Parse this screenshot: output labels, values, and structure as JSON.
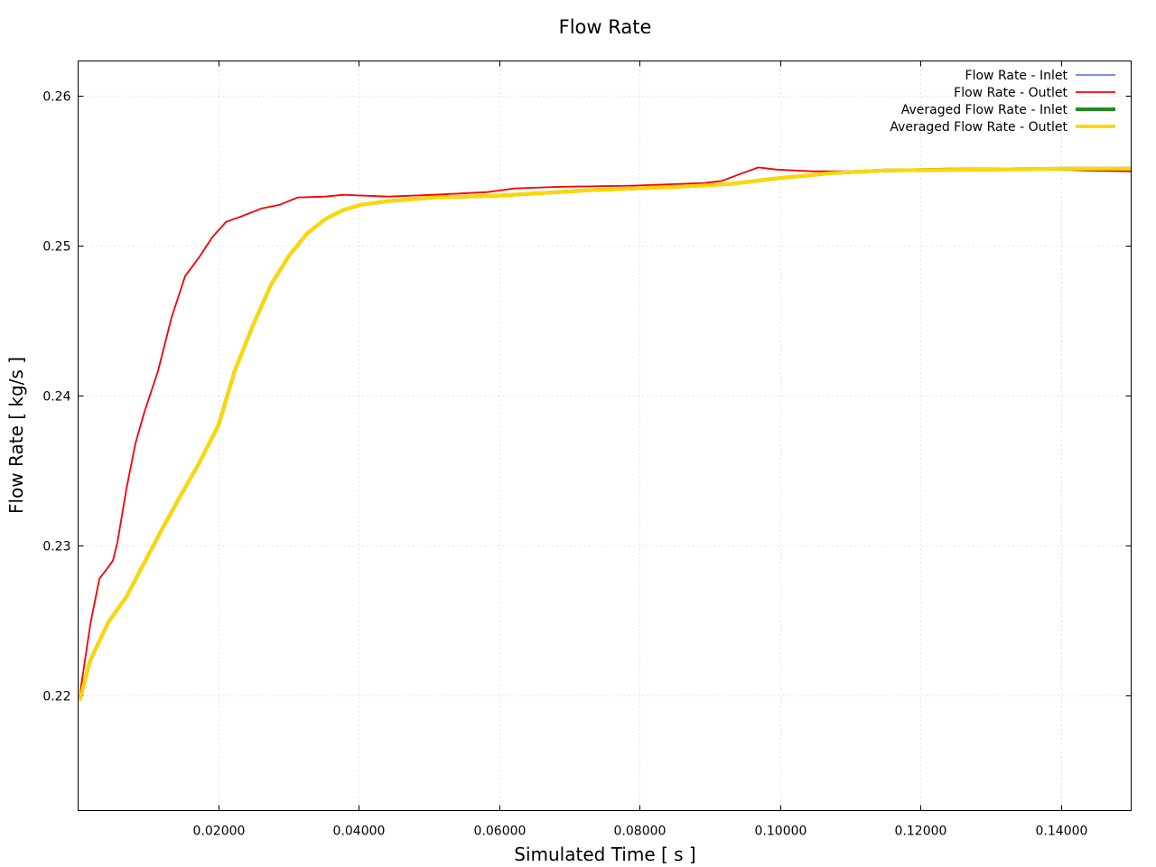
{
  "chart_data": {
    "type": "line",
    "title": "Flow Rate",
    "xlabel": "Simulated Time [ s ]",
    "ylabel": "Flow Rate [ kg/s ]",
    "xlim": [
      0,
      0.15
    ],
    "ylim": [
      0.2123,
      0.2623
    ],
    "xticks": [
      0.02,
      0.04,
      0.06,
      0.08,
      0.1,
      0.12,
      0.14
    ],
    "xtick_labels": [
      "0.02000",
      "0.04000",
      "0.06000",
      "0.08000",
      "0.10000",
      "0.12000",
      "0.14000"
    ],
    "yticks": [
      0.22,
      0.23,
      0.24,
      0.25,
      0.26
    ],
    "ytick_labels": [
      "0.22",
      "0.23",
      "0.24",
      "0.25",
      "0.26"
    ],
    "grid": true,
    "legend_position": "top-right",
    "series": [
      {
        "name": "Flow Rate - Inlet",
        "color": "#4a6fdc",
        "ref": "raw"
      },
      {
        "name": "Flow Rate - Outlet",
        "color": "#ff0000",
        "ref": "raw"
      },
      {
        "name": "Averaged Flow Rate - Inlet",
        "color": "#228b22",
        "ref": "avg"
      },
      {
        "name": "Averaged Flow Rate - Outlet",
        "color": "#ffd700",
        "ref": "avg"
      }
    ],
    "raw": {
      "x": [
        0.0002,
        0.00175,
        0.00303,
        0.00432,
        0.00496,
        0.0056,
        0.00689,
        0.00817,
        0.00946,
        0.01139,
        0.01332,
        0.01525,
        0.01718,
        0.01911,
        0.02108,
        0.0236,
        0.02617,
        0.02874,
        0.0313,
        0.0352,
        0.0377,
        0.0442,
        0.0506,
        0.0583,
        0.0622,
        0.0686,
        0.0789,
        0.0892,
        0.0917,
        0.0943,
        0.0969,
        0.0994,
        0.1046,
        0.111,
        0.1174,
        0.1239,
        0.1303,
        0.1367,
        0.1431,
        0.15
      ],
      "y": [
        0.2199,
        0.22476,
        0.22777,
        0.22855,
        0.22898,
        0.23018,
        0.2338,
        0.2368,
        0.2389,
        0.24163,
        0.2452,
        0.24795,
        0.24916,
        0.25054,
        0.25157,
        0.25199,
        0.25247,
        0.25271,
        0.2532,
        0.25325,
        0.25337,
        0.25325,
        0.25337,
        0.25355,
        0.2538,
        0.2539,
        0.25398,
        0.25416,
        0.2543,
        0.25476,
        0.2552,
        0.25506,
        0.25494,
        0.25494,
        0.25506,
        0.25512,
        0.25512,
        0.25512,
        0.255,
        0.25494
      ]
    },
    "avg": {
      "x": [
        0.0002,
        0.00175,
        0.00432,
        0.00689,
        0.00946,
        0.01203,
        0.0146,
        0.01718,
        0.02,
        0.02231,
        0.02488,
        0.02745,
        0.03,
        0.0326,
        0.0352,
        0.0377,
        0.0403,
        0.0442,
        0.0506,
        0.0596,
        0.0724,
        0.0853,
        0.093,
        0.0994,
        0.1072,
        0.1149,
        0.1303,
        0.1406,
        0.15
      ],
      "y": [
        0.21964,
        0.22235,
        0.22488,
        0.22657,
        0.22886,
        0.23114,
        0.23331,
        0.23542,
        0.23801,
        0.24163,
        0.24464,
        0.24735,
        0.24928,
        0.25078,
        0.25175,
        0.25235,
        0.25271,
        0.25295,
        0.2532,
        0.25331,
        0.25367,
        0.2539,
        0.2541,
        0.25446,
        0.25482,
        0.255,
        0.25506,
        0.25512,
        0.25512
      ]
    }
  }
}
